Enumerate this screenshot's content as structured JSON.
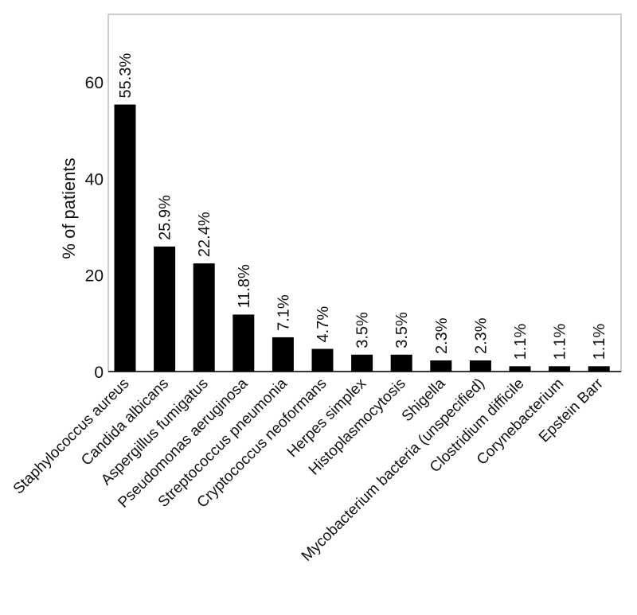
{
  "chart_data": {
    "type": "bar",
    "ylabel": "% of patients",
    "ylim": [
      0,
      74
    ],
    "yticks": [
      0,
      20,
      40,
      60
    ],
    "grid": false,
    "bar_color": "#000000",
    "categories": [
      "Staphylococcus aureus",
      "Candida albicans",
      "Aspergillus fumigatus",
      "Pseudomonas aeruginosa",
      "Streptococcus pneumonia",
      "Cryptococcus neoformans",
      "Herpes simplex",
      "Histoplasmocytosis",
      "Shigella",
      "Mycobacterium bacteria (unspecified)",
      "Clostridium difficile",
      "Corynebacterium",
      "Epstein Barr"
    ],
    "values": [
      55.3,
      25.9,
      22.4,
      11.8,
      7.1,
      4.7,
      3.5,
      3.5,
      2.3,
      2.3,
      1.1,
      1.1,
      1.1
    ],
    "data_labels": [
      "55.3%",
      "25.9%",
      "22.4%",
      "11.8%",
      "7.1%",
      "4.7%",
      "3.5%",
      "3.5%",
      "2.3%",
      "2.3%",
      "1.1%",
      "1.1%",
      "1.1%"
    ]
  }
}
